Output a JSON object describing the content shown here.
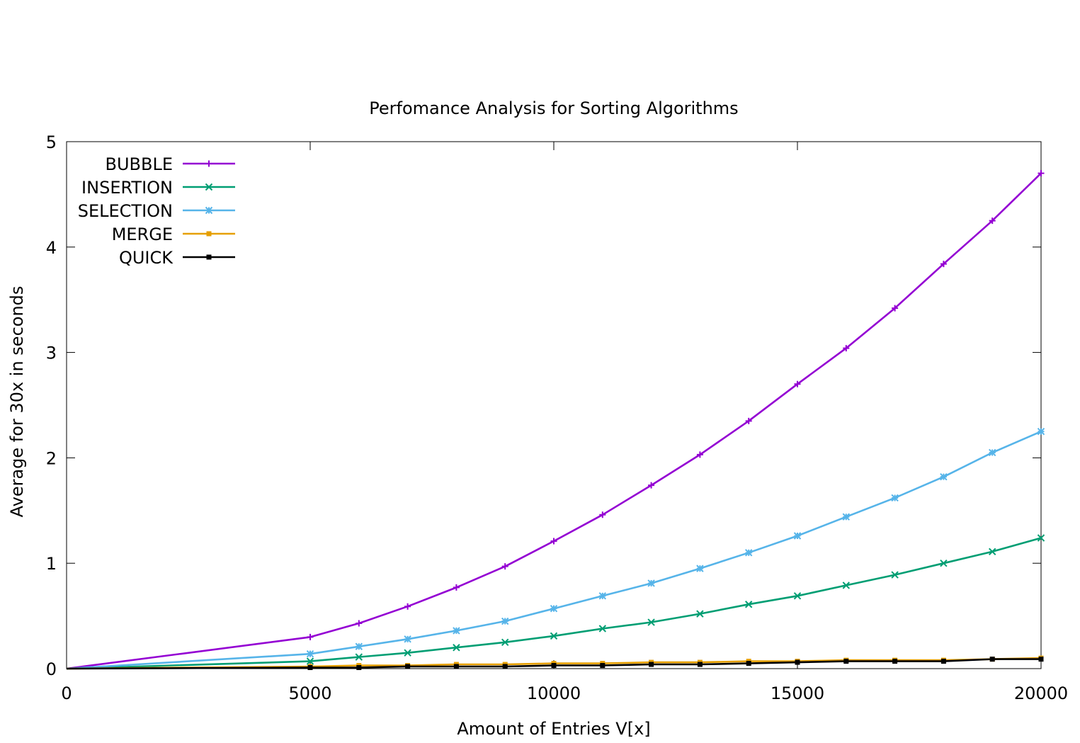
{
  "chart_data": {
    "type": "line",
    "title": "Perfomance Analysis for Sorting Algorithms",
    "xlabel": "Amount of Entries V[x]",
    "ylabel": "Average for 30x in seconds",
    "xlim": [
      0,
      20000
    ],
    "ylim": [
      0,
      5
    ],
    "xticks": [
      "0",
      "5000",
      "10000",
      "15000",
      "20000"
    ],
    "yticks": [
      "0",
      "1",
      "2",
      "3",
      "4",
      "5"
    ],
    "grid": false,
    "legend_position": "top-left",
    "x": [
      0,
      5000,
      6000,
      7000,
      8000,
      9000,
      10000,
      11000,
      12000,
      13000,
      14000,
      15000,
      16000,
      17000,
      18000,
      19000,
      20000
    ],
    "series": [
      {
        "name": "BUBBLE",
        "color": "#9400d3",
        "marker": "plus",
        "values": [
          0,
          0.3,
          0.43,
          0.59,
          0.77,
          0.97,
          1.21,
          1.46,
          1.74,
          2.03,
          2.35,
          2.7,
          3.04,
          3.42,
          3.84,
          4.25,
          4.7
        ]
      },
      {
        "name": "INSERTION",
        "color": "#009e73",
        "marker": "cross",
        "values": [
          0,
          0.07,
          0.11,
          0.15,
          0.2,
          0.25,
          0.31,
          0.38,
          0.44,
          0.52,
          0.61,
          0.69,
          0.79,
          0.89,
          1.0,
          1.11,
          1.24
        ]
      },
      {
        "name": "SELECTION",
        "color": "#56b4e9",
        "marker": "star",
        "values": [
          0,
          0.14,
          0.21,
          0.28,
          0.36,
          0.45,
          0.57,
          0.69,
          0.81,
          0.95,
          1.1,
          1.26,
          1.44,
          1.62,
          1.82,
          2.05,
          2.25
        ]
      },
      {
        "name": "MERGE",
        "color": "#e69f00",
        "marker": "box",
        "values": [
          0,
          0.02,
          0.03,
          0.03,
          0.04,
          0.04,
          0.05,
          0.05,
          0.06,
          0.06,
          0.07,
          0.07,
          0.08,
          0.08,
          0.08,
          0.09,
          0.1
        ]
      },
      {
        "name": "QUICK",
        "color": "#000000",
        "marker": "box",
        "values": [
          0,
          0.01,
          0.01,
          0.02,
          0.02,
          0.02,
          0.03,
          0.03,
          0.04,
          0.04,
          0.05,
          0.06,
          0.07,
          0.07,
          0.07,
          0.09,
          0.09
        ]
      }
    ]
  }
}
